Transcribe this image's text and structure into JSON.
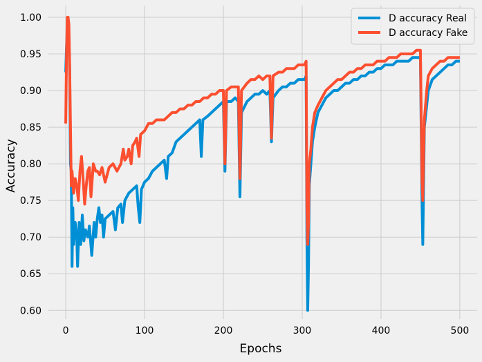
{
  "chart_data": {
    "type": "line",
    "title": "",
    "xlabel": "Epochs",
    "ylabel": "Accuracy",
    "xlim": [
      -22,
      522
    ],
    "ylim": [
      0.588,
      1.016
    ],
    "grid": true,
    "legend_placement": "top-right",
    "x_ticks": [
      0,
      100,
      200,
      300,
      400,
      500
    ],
    "y_ticks": [
      0.6,
      0.65,
      0.7,
      0.75,
      0.8,
      0.85,
      0.9,
      0.95,
      1.0
    ],
    "x_tick_labels": [
      "0",
      "100",
      "200",
      "300",
      "400",
      "500"
    ],
    "y_tick_labels": [
      "0.60",
      "0.65",
      "0.70",
      "0.75",
      "0.80",
      "0.85",
      "0.90",
      "0.95",
      "1.00"
    ],
    "series": [
      {
        "name": "D accuracy Real",
        "color": "#008fd5",
        "points": [
          [
            0,
            0.925
          ],
          [
            1,
            0.96
          ],
          [
            2,
            0.985
          ],
          [
            3,
            0.99
          ],
          [
            4,
            0.97
          ],
          [
            5,
            0.93
          ],
          [
            6,
            0.8
          ],
          [
            7,
            0.79
          ],
          [
            8,
            0.66
          ],
          [
            9,
            0.74
          ],
          [
            10,
            0.69
          ],
          [
            12,
            0.72
          ],
          [
            14,
            0.7
          ],
          [
            15,
            0.66
          ],
          [
            17,
            0.72
          ],
          [
            19,
            0.69
          ],
          [
            21,
            0.73
          ],
          [
            23,
            0.695
          ],
          [
            25,
            0.71
          ],
          [
            28,
            0.7
          ],
          [
            30,
            0.715
          ],
          [
            33,
            0.675
          ],
          [
            36,
            0.72
          ],
          [
            38,
            0.7
          ],
          [
            40,
            0.725
          ],
          [
            42,
            0.74
          ],
          [
            44,
            0.72
          ],
          [
            46,
            0.73
          ],
          [
            48,
            0.7
          ],
          [
            50,
            0.725
          ],
          [
            55,
            0.73
          ],
          [
            60,
            0.735
          ],
          [
            63,
            0.71
          ],
          [
            66,
            0.74
          ],
          [
            70,
            0.745
          ],
          [
            72,
            0.72
          ],
          [
            75,
            0.75
          ],
          [
            80,
            0.76
          ],
          [
            85,
            0.765
          ],
          [
            90,
            0.77
          ],
          [
            92,
            0.74
          ],
          [
            94,
            0.72
          ],
          [
            96,
            0.765
          ],
          [
            100,
            0.775
          ],
          [
            105,
            0.78
          ],
          [
            110,
            0.79
          ],
          [
            115,
            0.795
          ],
          [
            120,
            0.8
          ],
          [
            125,
            0.805
          ],
          [
            128,
            0.78
          ],
          [
            130,
            0.81
          ],
          [
            135,
            0.815
          ],
          [
            140,
            0.83
          ],
          [
            145,
            0.835
          ],
          [
            150,
            0.84
          ],
          [
            155,
            0.845
          ],
          [
            160,
            0.85
          ],
          [
            165,
            0.855
          ],
          [
            170,
            0.86
          ],
          [
            172,
            0.81
          ],
          [
            174,
            0.86
          ],
          [
            180,
            0.865
          ],
          [
            185,
            0.87
          ],
          [
            190,
            0.875
          ],
          [
            195,
            0.88
          ],
          [
            200,
            0.885
          ],
          [
            202,
            0.79
          ],
          [
            204,
            0.885
          ],
          [
            210,
            0.885
          ],
          [
            215,
            0.89
          ],
          [
            219,
            0.885
          ],
          [
            221,
            0.755
          ],
          [
            223,
            0.87
          ],
          [
            230,
            0.885
          ],
          [
            235,
            0.89
          ],
          [
            240,
            0.895
          ],
          [
            245,
            0.895
          ],
          [
            250,
            0.9
          ],
          [
            255,
            0.895
          ],
          [
            259,
            0.9
          ],
          [
            261,
            0.83
          ],
          [
            263,
            0.89
          ],
          [
            270,
            0.9
          ],
          [
            275,
            0.905
          ],
          [
            280,
            0.905
          ],
          [
            285,
            0.91
          ],
          [
            290,
            0.91
          ],
          [
            295,
            0.915
          ],
          [
            300,
            0.915
          ],
          [
            303,
            0.915
          ],
          [
            305,
            0.92
          ],
          [
            306,
            0.7
          ],
          [
            307,
            0.6
          ],
          [
            308,
            0.66
          ],
          [
            309,
            0.77
          ],
          [
            311,
            0.8
          ],
          [
            313,
            0.83
          ],
          [
            316,
            0.85
          ],
          [
            320,
            0.87
          ],
          [
            325,
            0.88
          ],
          [
            330,
            0.89
          ],
          [
            335,
            0.895
          ],
          [
            340,
            0.9
          ],
          [
            345,
            0.9
          ],
          [
            350,
            0.905
          ],
          [
            355,
            0.91
          ],
          [
            360,
            0.91
          ],
          [
            365,
            0.915
          ],
          [
            370,
            0.915
          ],
          [
            375,
            0.92
          ],
          [
            380,
            0.92
          ],
          [
            385,
            0.925
          ],
          [
            390,
            0.925
          ],
          [
            395,
            0.93
          ],
          [
            400,
            0.93
          ],
          [
            405,
            0.935
          ],
          [
            410,
            0.935
          ],
          [
            415,
            0.935
          ],
          [
            420,
            0.94
          ],
          [
            425,
            0.94
          ],
          [
            430,
            0.94
          ],
          [
            435,
            0.94
          ],
          [
            440,
            0.945
          ],
          [
            445,
            0.945
          ],
          [
            450,
            0.945
          ],
          [
            452,
            0.75
          ],
          [
            453,
            0.69
          ],
          [
            455,
            0.85
          ],
          [
            458,
            0.88
          ],
          [
            460,
            0.9
          ],
          [
            465,
            0.915
          ],
          [
            470,
            0.92
          ],
          [
            475,
            0.925
          ],
          [
            480,
            0.93
          ],
          [
            485,
            0.935
          ],
          [
            490,
            0.935
          ],
          [
            495,
            0.94
          ],
          [
            500,
            0.94
          ]
        ]
      },
      {
        "name": "D accuracy Fake",
        "color": "#fc4f30",
        "points": [
          [
            0,
            0.855
          ],
          [
            1,
            0.95
          ],
          [
            2,
            1.0
          ],
          [
            3,
            1.0
          ],
          [
            4,
            0.99
          ],
          [
            5,
            0.93
          ],
          [
            6,
            0.85
          ],
          [
            7,
            0.77
          ],
          [
            8,
            0.79
          ],
          [
            10,
            0.76
          ],
          [
            12,
            0.78
          ],
          [
            14,
            0.77
          ],
          [
            16,
            0.75
          ],
          [
            18,
            0.79
          ],
          [
            20,
            0.81
          ],
          [
            22,
            0.78
          ],
          [
            24,
            0.745
          ],
          [
            26,
            0.77
          ],
          [
            28,
            0.79
          ],
          [
            30,
            0.795
          ],
          [
            32,
            0.755
          ],
          [
            35,
            0.8
          ],
          [
            38,
            0.79
          ],
          [
            40,
            0.79
          ],
          [
            43,
            0.785
          ],
          [
            46,
            0.795
          ],
          [
            50,
            0.775
          ],
          [
            55,
            0.795
          ],
          [
            60,
            0.8
          ],
          [
            65,
            0.79
          ],
          [
            70,
            0.8
          ],
          [
            73,
            0.82
          ],
          [
            75,
            0.805
          ],
          [
            78,
            0.81
          ],
          [
            80,
            0.82
          ],
          [
            83,
            0.8
          ],
          [
            85,
            0.825
          ],
          [
            88,
            0.83
          ],
          [
            90,
            0.835
          ],
          [
            93,
            0.81
          ],
          [
            95,
            0.84
          ],
          [
            100,
            0.845
          ],
          [
            105,
            0.855
          ],
          [
            110,
            0.855
          ],
          [
            115,
            0.86
          ],
          [
            120,
            0.86
          ],
          [
            125,
            0.86
          ],
          [
            130,
            0.865
          ],
          [
            135,
            0.87
          ],
          [
            140,
            0.87
          ],
          [
            145,
            0.875
          ],
          [
            150,
            0.875
          ],
          [
            155,
            0.88
          ],
          [
            160,
            0.88
          ],
          [
            165,
            0.885
          ],
          [
            170,
            0.885
          ],
          [
            175,
            0.89
          ],
          [
            180,
            0.89
          ],
          [
            185,
            0.895
          ],
          [
            190,
            0.895
          ],
          [
            195,
            0.9
          ],
          [
            200,
            0.9
          ],
          [
            202,
            0.8
          ],
          [
            204,
            0.9
          ],
          [
            210,
            0.905
          ],
          [
            215,
            0.905
          ],
          [
            219,
            0.905
          ],
          [
            221,
            0.78
          ],
          [
            223,
            0.9
          ],
          [
            230,
            0.91
          ],
          [
            235,
            0.915
          ],
          [
            240,
            0.915
          ],
          [
            245,
            0.92
          ],
          [
            250,
            0.915
          ],
          [
            255,
            0.92
          ],
          [
            259,
            0.92
          ],
          [
            261,
            0.835
          ],
          [
            263,
            0.92
          ],
          [
            270,
            0.925
          ],
          [
            275,
            0.925
          ],
          [
            280,
            0.93
          ],
          [
            285,
            0.93
          ],
          [
            290,
            0.93
          ],
          [
            295,
            0.935
          ],
          [
            300,
            0.935
          ],
          [
            303,
            0.935
          ],
          [
            305,
            0.94
          ],
          [
            306,
            0.74
          ],
          [
            307,
            0.69
          ],
          [
            308,
            0.72
          ],
          [
            309,
            0.8
          ],
          [
            311,
            0.82
          ],
          [
            313,
            0.85
          ],
          [
            316,
            0.87
          ],
          [
            320,
            0.88
          ],
          [
            325,
            0.89
          ],
          [
            330,
            0.9
          ],
          [
            335,
            0.905
          ],
          [
            340,
            0.91
          ],
          [
            345,
            0.915
          ],
          [
            350,
            0.915
          ],
          [
            355,
            0.92
          ],
          [
            360,
            0.925
          ],
          [
            365,
            0.925
          ],
          [
            370,
            0.93
          ],
          [
            375,
            0.93
          ],
          [
            380,
            0.935
          ],
          [
            385,
            0.935
          ],
          [
            390,
            0.935
          ],
          [
            395,
            0.94
          ],
          [
            400,
            0.94
          ],
          [
            405,
            0.94
          ],
          [
            410,
            0.945
          ],
          [
            415,
            0.945
          ],
          [
            420,
            0.945
          ],
          [
            425,
            0.95
          ],
          [
            430,
            0.95
          ],
          [
            435,
            0.95
          ],
          [
            440,
            0.95
          ],
          [
            445,
            0.955
          ],
          [
            450,
            0.955
          ],
          [
            452,
            0.78
          ],
          [
            453,
            0.75
          ],
          [
            455,
            0.86
          ],
          [
            458,
            0.9
          ],
          [
            460,
            0.92
          ],
          [
            465,
            0.93
          ],
          [
            470,
            0.935
          ],
          [
            475,
            0.94
          ],
          [
            480,
            0.94
          ],
          [
            485,
            0.945
          ],
          [
            490,
            0.945
          ],
          [
            495,
            0.945
          ],
          [
            500,
            0.945
          ]
        ]
      }
    ]
  }
}
